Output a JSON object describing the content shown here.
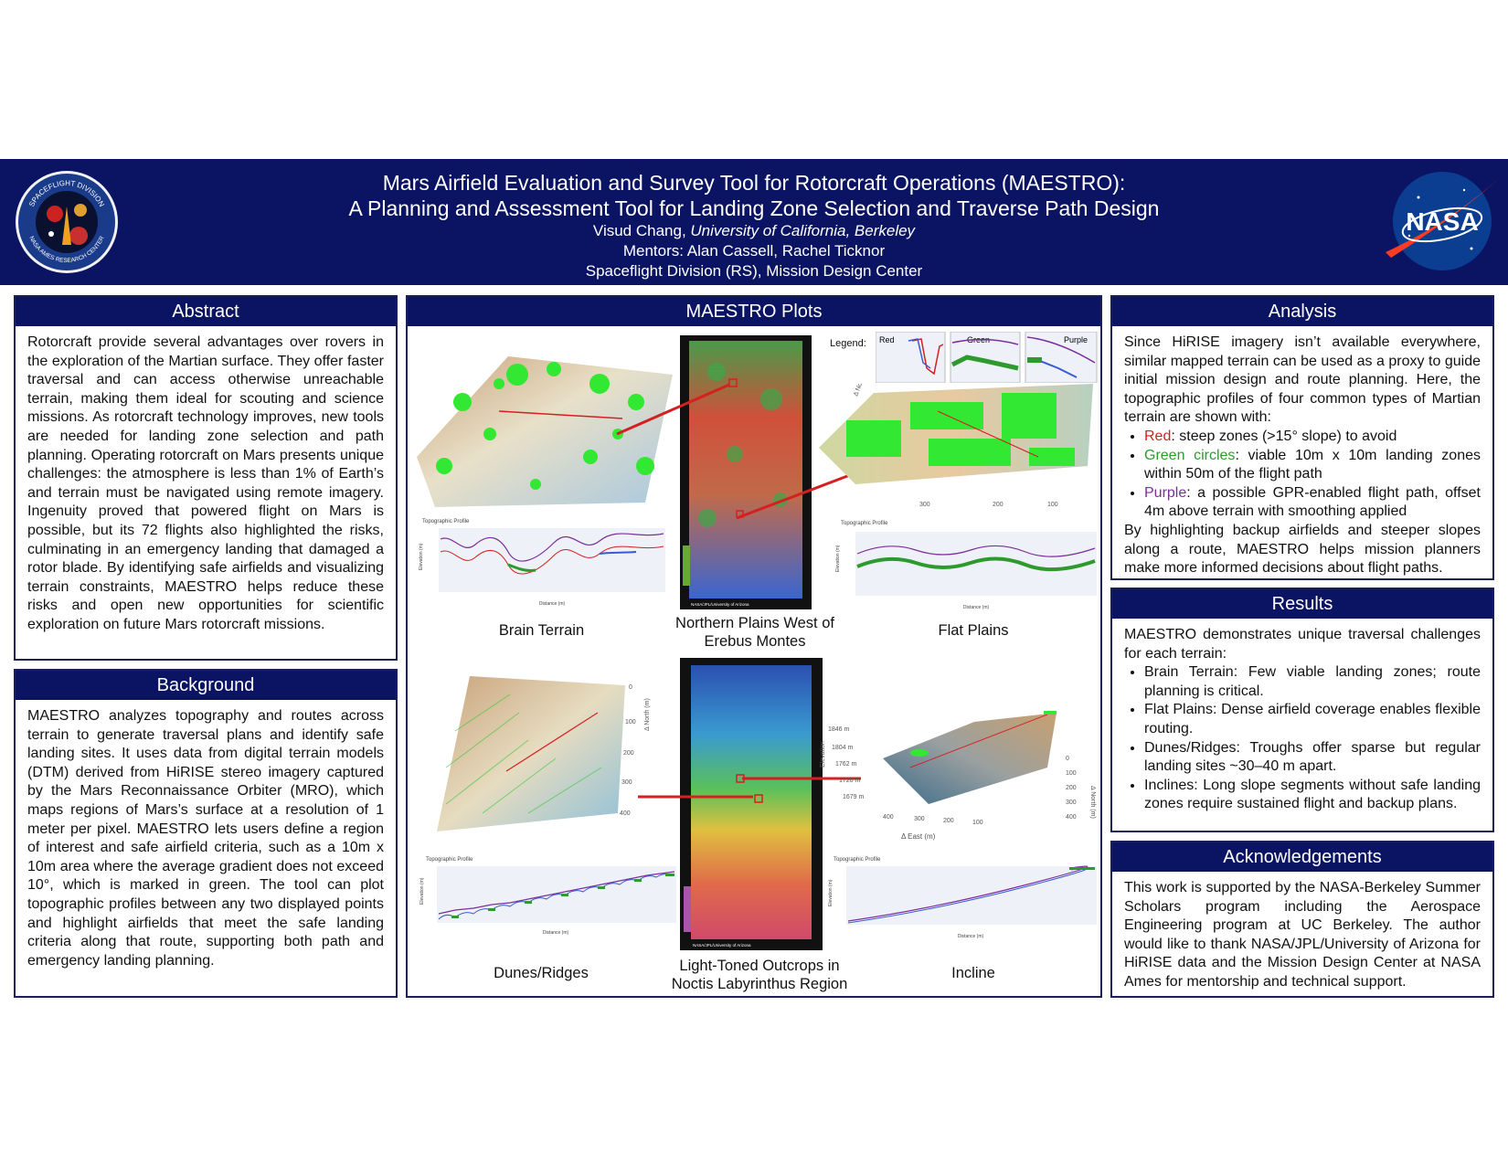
{
  "header": {
    "title_line1": "Mars Airfield Evaluation and Survey Tool for Rotorcraft Operations (MAESTRO):",
    "title_line2": "A Planning and Assessment Tool for Landing Zone Selection and Traverse Path Design",
    "author_name": "Visud Chang, ",
    "author_affiliation": "University of California, Berkeley",
    "mentors": "Mentors: Alan Cassell, Rachel Ticknor",
    "division": "Spaceflight Division (RS), Mission Design Center",
    "left_logo_top_text": "SPACEFLIGHT DIVISION",
    "left_logo_bottom_text": "NASA AMES RESEARCH CENTER",
    "right_logo_text": "NASA"
  },
  "abstract": {
    "title": "Abstract",
    "body": "Rotorcraft provide several advantages over rovers in the exploration of the Martian surface. They offer faster traversal and can access otherwise unreachable terrain, making them ideal for scouting and science missions. As rotorcraft technology improves, new tools are needed for landing zone selection and path planning. Operating rotorcraft on Mars presents unique challenges: the atmosphere is less than 1% of Earth’s and terrain must be navigated using remote imagery. Ingenuity proved that powered flight on Mars is possible, but its 72 flights also highlighted the risks, culminating in an emergency landing that damaged a rotor blade. By identifying safe airfields and visualizing terrain constraints, MAESTRO helps reduce these risks and open new opportunities for scientific exploration on future Mars rotorcraft missions."
  },
  "background": {
    "title": "Background",
    "body": "MAESTRO analyzes topography and routes across terrain to generate traversal plans and identify safe landing sites. It uses data from digital terrain models (DTM) derived from HiRISE stereo imagery captured by the Mars Reconnaissance Orbiter (MRO), which maps regions of Mars’s surface at a resolution of 1 meter per pixel. MAESTRO lets users define a region of interest and safe airfield criteria, such as a 10m x 10m area where the average gradient does not exceed 10°, which is marked in green. The tool can plot topographic profiles between any two displayed points and highlight airfields that meet the safe landing criteria along that route, supporting both path and emergency landing planning."
  },
  "plots": {
    "title": "MAESTRO Plots",
    "legend_label": "Legend:",
    "legend_red": "Red",
    "legend_green": "Green",
    "legend_purple": "Purple",
    "profile_title": "Topographic Profile",
    "profile_xlabel": "Distance (m)",
    "profile_ylabel": "Elevation (m)",
    "axis_north": "Δ North (m)",
    "axis_east": "Δ East (m)",
    "axis_elevation": "Elevation",
    "map_credit": "NASA/JPL/University of Arizona",
    "captions": {
      "brain": "Brain Terrain",
      "erebus_l1": "Northern Plains West of",
      "erebus_l2": "Erebus Montes",
      "flat": "Flat Plains",
      "dunes": "Dunes/Ridges",
      "noctis_l1": "Light-Toned Outcrops in",
      "noctis_l2": "Noctis Labyrinthus Region",
      "incline": "Incline"
    },
    "tick_labels": {
      "north_dunes": [
        "0",
        "100",
        "200",
        "300",
        "400"
      ],
      "elev_incline": [
        "1846 m",
        "1804 m",
        "1762 m",
        "1720 m",
        "1679 m"
      ],
      "north_incline": [
        "0",
        "100",
        "200",
        "300",
        "400"
      ],
      "east_incline": [
        "400",
        "300",
        "200",
        "100"
      ],
      "flat_axis": [
        "300",
        "200",
        "100"
      ]
    }
  },
  "analysis": {
    "title": "Analysis",
    "intro": "Since HiRISE imagery isn’t available everywhere, similar mapped terrain can be used as a proxy to guide initial mission design and route planning. Here, the topographic profiles of four common types of Martian terrain are shown with:",
    "items": [
      {
        "key": "Red",
        "text": ": steep zones (>15° slope) to avoid"
      },
      {
        "key": "Green circles",
        "text": ": viable 10m x 10m landing zones within 50m of the flight path"
      },
      {
        "key": "Purple",
        "text": ": a possible GPR-enabled flight path, offset 4m above terrain with smoothing applied"
      }
    ],
    "outro": "By highlighting backup airfields and steeper slopes along a route, MAESTRO helps mission planners make more informed decisions about flight paths.",
    "colors": {
      "red": "#d42020",
      "green": "#2e9a2e",
      "purple": "#7a2f9a"
    }
  },
  "results": {
    "title": "Results",
    "intro": "MAESTRO demonstrates unique traversal challenges for each terrain:",
    "items": [
      "Brain Terrain: Few viable landing zones; route planning is critical.",
      "Flat Plains: Dense airfield coverage enables flexible routing.",
      "Dunes/Ridges: Troughs offer sparse but regular landing sites ~30–40 m apart.",
      "Inclines: Long slope segments without safe landing zones require sustained flight and backup plans."
    ]
  },
  "acknowledgements": {
    "title": "Acknowledgements",
    "body": "This work is supported by the NASA-Berkeley Summer Scholars program including the Aerospace Engineering program at UC Berkeley. The author would like to thank NASA/JPL/University of Arizona for HiRISE data and the Mission Design Center at NASA Ames for mentorship and technical support."
  }
}
